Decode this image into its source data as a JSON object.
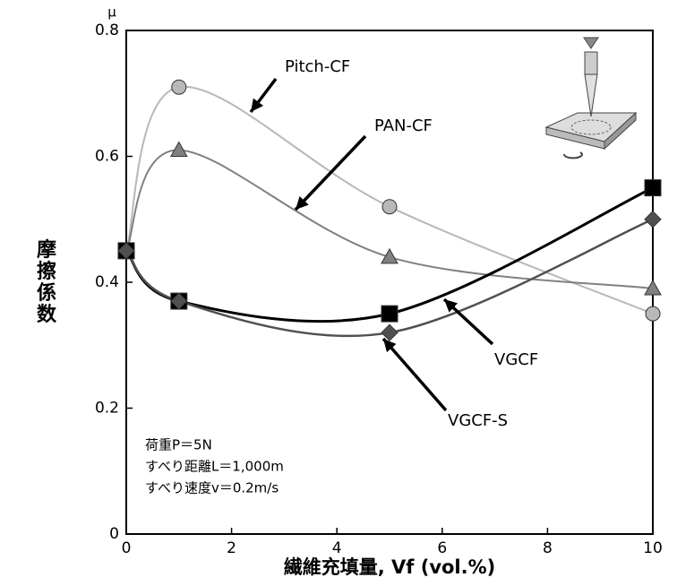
{
  "chart_data": {
    "type": "line",
    "y_label": "摩擦係数",
    "y_unit": "μ",
    "x_label": "繊維充填量, Vf (vol.%)",
    "x": [
      0,
      1,
      5,
      10
    ],
    "series": [
      {
        "name": "Pitch-CF",
        "color": "#b8b8b8",
        "marker": "circle",
        "values": [
          0.45,
          0.71,
          0.52,
          0.35
        ]
      },
      {
        "name": "PAN-CF",
        "color": "#808080",
        "marker": "triangle",
        "values": [
          0.45,
          0.61,
          0.44,
          0.39
        ]
      },
      {
        "name": "VGCF",
        "color": "#000000",
        "marker": "square",
        "values": [
          0.45,
          0.37,
          0.35,
          0.55
        ]
      },
      {
        "name": "VGCF-S",
        "color": "#505050",
        "marker": "diamond",
        "values": [
          0.45,
          0.37,
          0.32,
          0.5
        ]
      }
    ],
    "xlim": [
      0,
      10
    ],
    "xticks": [
      0,
      2,
      4,
      6,
      8,
      10
    ],
    "ylim": [
      0,
      0.8
    ],
    "yticks": [
      0,
      0.2,
      0.4,
      0.6,
      0.8
    ],
    "annotations": [
      "荷重P＝5N",
      "すべり距離L＝1,000m",
      "すべり速度v＝0.2m/s"
    ]
  }
}
